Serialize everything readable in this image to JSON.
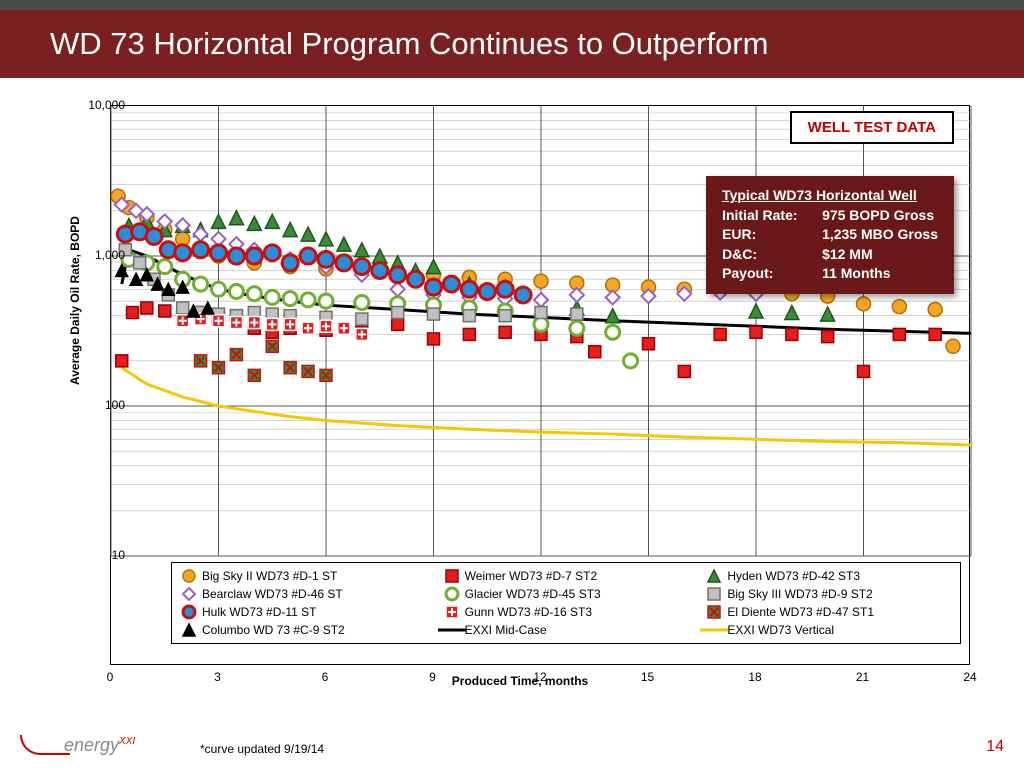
{
  "title": "WD 73 Horizontal Program Continues to Outperform",
  "chart": {
    "type": "scatter-log",
    "xlabel": "Produced Time, months",
    "ylabel": "Average Daily Oil Rate, BOPD",
    "xlim": [
      0,
      24
    ],
    "xtick_step": 3,
    "ylim": [
      10,
      10000
    ],
    "yscale": "log",
    "yticks": [
      10,
      100,
      1000,
      10000
    ],
    "ytick_labels": [
      "10",
      "100",
      "1,000",
      "10,000"
    ],
    "background": "#ffffff",
    "grid_color_major": "#555555",
    "grid_color_minor": "#bbbbbb",
    "border_color": "#000000"
  },
  "annotation_box": {
    "text": "WELL TEST DATA",
    "color": "#c00000",
    "border": "#000000",
    "bg": "#ffffff"
  },
  "info_box": {
    "title": "Typical WD73 Horizontal Well",
    "bg": "#6b1818",
    "text_color": "#ffffff",
    "rows": [
      {
        "k": "Initial Rate:",
        "v": "975 BOPD Gross"
      },
      {
        "k": "EUR:",
        "v": "1,235 MBO Gross"
      },
      {
        "k": "D&C:",
        "v": "$12 MM"
      },
      {
        "k": "Payout:",
        "v": "11 Months"
      }
    ]
  },
  "series": [
    {
      "name": "Big Sky II WD73 #D-1 ST",
      "marker": "circle",
      "fill": "#f5a623",
      "stroke": "#b07000",
      "size": 14,
      "data": [
        [
          0.2,
          2500
        ],
        [
          0.5,
          2100
        ],
        [
          1,
          1800
        ],
        [
          1.5,
          1500
        ],
        [
          2,
          1300
        ],
        [
          2.5,
          1100
        ],
        [
          3,
          1000
        ],
        [
          4,
          900
        ],
        [
          5,
          850
        ],
        [
          6,
          820
        ],
        [
          7,
          800
        ],
        [
          8,
          780
        ],
        [
          9,
          750
        ],
        [
          10,
          720
        ],
        [
          11,
          700
        ],
        [
          12,
          680
        ],
        [
          13,
          660
        ],
        [
          14,
          640
        ],
        [
          15,
          620
        ],
        [
          16,
          600
        ],
        [
          17,
          590
        ],
        [
          18,
          580
        ],
        [
          19,
          560
        ],
        [
          20,
          540
        ],
        [
          21,
          480
        ],
        [
          22,
          460
        ],
        [
          23,
          440
        ],
        [
          23.5,
          250
        ]
      ]
    },
    {
      "name": "Weimer WD73 #D-7 ST2",
      "marker": "square",
      "fill": "#e31e1e",
      "stroke": "#a00000",
      "size": 12,
      "data": [
        [
          0.3,
          200
        ],
        [
          0.6,
          420
        ],
        [
          1,
          450
        ],
        [
          1.5,
          430
        ],
        [
          2,
          400
        ],
        [
          2.5,
          420
        ],
        [
          3,
          380
        ],
        [
          3.5,
          400
        ],
        [
          4,
          330
        ],
        [
          4.5,
          310
        ],
        [
          5,
          330
        ],
        [
          6,
          320
        ],
        [
          7,
          310
        ],
        [
          8,
          350
        ],
        [
          9,
          280
        ],
        [
          10,
          300
        ],
        [
          11,
          310
        ],
        [
          12,
          300
        ],
        [
          13,
          290
        ],
        [
          13.5,
          230
        ],
        [
          15,
          260
        ],
        [
          16,
          170
        ],
        [
          17,
          300
        ],
        [
          18,
          310
        ],
        [
          19,
          300
        ],
        [
          20,
          290
        ],
        [
          21,
          170
        ],
        [
          22,
          300
        ],
        [
          23,
          300
        ]
      ]
    },
    {
      "name": "Hyden WD73 #D-42 ST3",
      "marker": "triangle",
      "fill": "#3a8a3a",
      "stroke": "#1a5a1a",
      "size": 14,
      "data": [
        [
          0.5,
          1600
        ],
        [
          1,
          1700
        ],
        [
          1.5,
          1500
        ],
        [
          2,
          1600
        ],
        [
          2.5,
          1500
        ],
        [
          3,
          1700
        ],
        [
          3.5,
          1800
        ],
        [
          4,
          1650
        ],
        [
          4.5,
          1700
        ],
        [
          5,
          1500
        ],
        [
          5.5,
          1400
        ],
        [
          6,
          1300
        ],
        [
          6.5,
          1200
        ],
        [
          7,
          1100
        ],
        [
          7.5,
          1000
        ],
        [
          8,
          900
        ],
        [
          8.5,
          800
        ],
        [
          9,
          850
        ],
        [
          10,
          650
        ],
        [
          11,
          620
        ],
        [
          13,
          450
        ],
        [
          14,
          400
        ],
        [
          18,
          430
        ],
        [
          19,
          420
        ],
        [
          20,
          410
        ]
      ]
    },
    {
      "name": "Bearclaw WD73 #D-46 ST",
      "marker": "diamond",
      "fill": "#ffffff",
      "stroke": "#9a5fc4",
      "size": 14,
      "data": [
        [
          0.3,
          2200
        ],
        [
          0.7,
          2000
        ],
        [
          1,
          1900
        ],
        [
          1.5,
          1700
        ],
        [
          2,
          1600
        ],
        [
          2.5,
          1400
        ],
        [
          3,
          1300
        ],
        [
          3.5,
          1200
        ],
        [
          4,
          1100
        ],
        [
          5,
          950
        ],
        [
          6,
          850
        ],
        [
          7,
          750
        ],
        [
          8,
          600
        ],
        [
          9,
          550
        ],
        [
          10,
          530
        ],
        [
          11,
          520
        ],
        [
          12,
          510
        ],
        [
          13,
          550
        ],
        [
          14,
          530
        ],
        [
          15,
          540
        ],
        [
          16,
          560
        ],
        [
          17,
          570
        ],
        [
          18,
          560
        ]
      ]
    },
    {
      "name": "Glacier WD73 #D-45 ST3",
      "marker": "ring",
      "fill": "#ffffff",
      "stroke": "#6fb030",
      "size": 14,
      "stroke_width": 3,
      "data": [
        [
          0.5,
          950
        ],
        [
          1,
          900
        ],
        [
          1.5,
          850
        ],
        [
          2,
          700
        ],
        [
          2.5,
          650
        ],
        [
          3,
          600
        ],
        [
          3.5,
          580
        ],
        [
          4,
          560
        ],
        [
          4.5,
          530
        ],
        [
          5,
          520
        ],
        [
          5.5,
          510
        ],
        [
          6,
          500
        ],
        [
          7,
          490
        ],
        [
          8,
          480
        ],
        [
          9,
          470
        ],
        [
          10,
          450
        ],
        [
          11,
          430
        ],
        [
          12,
          350
        ],
        [
          13,
          330
        ],
        [
          14,
          310
        ],
        [
          14.5,
          200
        ]
      ]
    },
    {
      "name": "Big Sky III WD73 #D-9 ST2",
      "marker": "square",
      "fill": "#c0c0c0",
      "stroke": "#707070",
      "size": 12,
      "data": [
        [
          0.4,
          1100
        ],
        [
          0.8,
          900
        ],
        [
          1.2,
          700
        ],
        [
          1.6,
          550
        ],
        [
          2,
          450
        ],
        [
          2.5,
          420
        ],
        [
          3,
          410
        ],
        [
          3.5,
          400
        ],
        [
          4,
          420
        ],
        [
          4.5,
          410
        ],
        [
          5,
          400
        ],
        [
          6,
          390
        ],
        [
          7,
          380
        ],
        [
          8,
          420
        ],
        [
          9,
          410
        ],
        [
          10,
          400
        ],
        [
          11,
          400
        ],
        [
          12,
          420
        ],
        [
          13,
          410
        ]
      ]
    },
    {
      "name": "Hulk WD73 #D-11 ST",
      "marker": "circle",
      "fill": "#2a8ed8",
      "stroke": "#c91010",
      "size": 16,
      "stroke_width": 3,
      "data": [
        [
          0.4,
          1400
        ],
        [
          0.8,
          1450
        ],
        [
          1.2,
          1350
        ],
        [
          1.6,
          1100
        ],
        [
          2,
          1050
        ],
        [
          2.5,
          1100
        ],
        [
          3,
          1050
        ],
        [
          3.5,
          1000
        ],
        [
          4,
          1000
        ],
        [
          4.5,
          1050
        ],
        [
          5,
          900
        ],
        [
          5.5,
          1000
        ],
        [
          6,
          950
        ],
        [
          6.5,
          900
        ],
        [
          7,
          850
        ],
        [
          7.5,
          800
        ],
        [
          8,
          750
        ],
        [
          8.5,
          700
        ],
        [
          9,
          620
        ],
        [
          9.5,
          650
        ],
        [
          10,
          600
        ],
        [
          10.5,
          580
        ],
        [
          11,
          600
        ],
        [
          11.5,
          550
        ]
      ]
    },
    {
      "name": "Gunn WD73 #D-16 ST3",
      "marker": "square-plus",
      "fill": "#e31e1e",
      "stroke": "#ffffff",
      "size": 12,
      "data": [
        [
          2,
          370
        ],
        [
          2.5,
          380
        ],
        [
          3,
          370
        ],
        [
          3.5,
          360
        ],
        [
          4,
          360
        ],
        [
          4.5,
          350
        ],
        [
          5,
          350
        ],
        [
          5.5,
          330
        ],
        [
          6,
          340
        ],
        [
          6.5,
          330
        ],
        [
          7,
          300
        ]
      ]
    },
    {
      "name": "El Diente WD73 #D-47 ST1",
      "marker": "square-x",
      "fill": "#3a8a3a",
      "stroke": "#c91010",
      "size": 12,
      "data": [
        [
          2.5,
          200
        ],
        [
          3,
          180
        ],
        [
          3.5,
          220
        ],
        [
          4,
          160
        ],
        [
          4.5,
          250
        ],
        [
          5,
          180
        ],
        [
          5.5,
          170
        ],
        [
          6,
          160
        ]
      ]
    },
    {
      "name": "Columbo WD 73 #C-9 ST2",
      "marker": "triangle",
      "fill": "#000000",
      "stroke": "#000000",
      "size": 12,
      "data": [
        [
          0.3,
          800
        ],
        [
          0.7,
          700
        ],
        [
          1,
          750
        ],
        [
          1.3,
          650
        ],
        [
          1.6,
          600
        ],
        [
          2,
          620
        ],
        [
          2.3,
          430
        ],
        [
          2.7,
          450
        ]
      ]
    }
  ],
  "lines": [
    {
      "name": "EXXI Mid-Case",
      "color": "#000000",
      "width": 3,
      "data": [
        [
          0.3,
          650
        ],
        [
          0.5,
          1100
        ],
        [
          1,
          1000
        ],
        [
          2,
          750
        ],
        [
          3,
          600
        ],
        [
          4,
          540
        ],
        [
          5,
          500
        ],
        [
          6,
          470
        ],
        [
          8,
          440
        ],
        [
          10,
          410
        ],
        [
          12,
          390
        ],
        [
          14,
          370
        ],
        [
          16,
          355
        ],
        [
          18,
          340
        ],
        [
          20,
          325
        ],
        [
          22,
          315
        ],
        [
          24,
          305
        ]
      ]
    },
    {
      "name": "EXXI WD73 Vertical",
      "color": "#f5c800",
      "width": 3,
      "data": [
        [
          0.3,
          180
        ],
        [
          1,
          140
        ],
        [
          2,
          115
        ],
        [
          3,
          100
        ],
        [
          4,
          92
        ],
        [
          5,
          85
        ],
        [
          6,
          80
        ],
        [
          8,
          74
        ],
        [
          10,
          70
        ],
        [
          12,
          67
        ],
        [
          14,
          65
        ],
        [
          16,
          62
        ],
        [
          18,
          60
        ],
        [
          20,
          58
        ],
        [
          22,
          57
        ],
        [
          24,
          55
        ]
      ]
    }
  ],
  "legend": [
    {
      "label": "Big Sky II WD73 #D-1 ST",
      "series": 0
    },
    {
      "label": "Weimer WD73 #D-7 ST2",
      "series": 1
    },
    {
      "label": "Hyden WD73 #D-42 ST3",
      "series": 2
    },
    {
      "label": "Bearclaw WD73 #D-46 ST",
      "series": 3
    },
    {
      "label": "Glacier WD73 #D-45 ST3",
      "series": 4
    },
    {
      "label": "Big Sky III WD73 #D-9 ST2",
      "series": 5
    },
    {
      "label": "Hulk WD73 #D-11 ST",
      "series": 6
    },
    {
      "label": "Gunn WD73 #D-16 ST3",
      "series": 7
    },
    {
      "label": "El Diente WD73 #D-47 ST1",
      "series": 8
    },
    {
      "label": "Columbo WD 73 #C-9 ST2",
      "series": 9
    },
    {
      "label": "EXXI Mid-Case",
      "line": 0
    },
    {
      "label": "EXXI WD73 Vertical",
      "line": 1
    }
  ],
  "footer": {
    "logo_text": "energy",
    "logo_sup": "XXI",
    "note": "*curve updated 9/19/14",
    "page": "14"
  }
}
